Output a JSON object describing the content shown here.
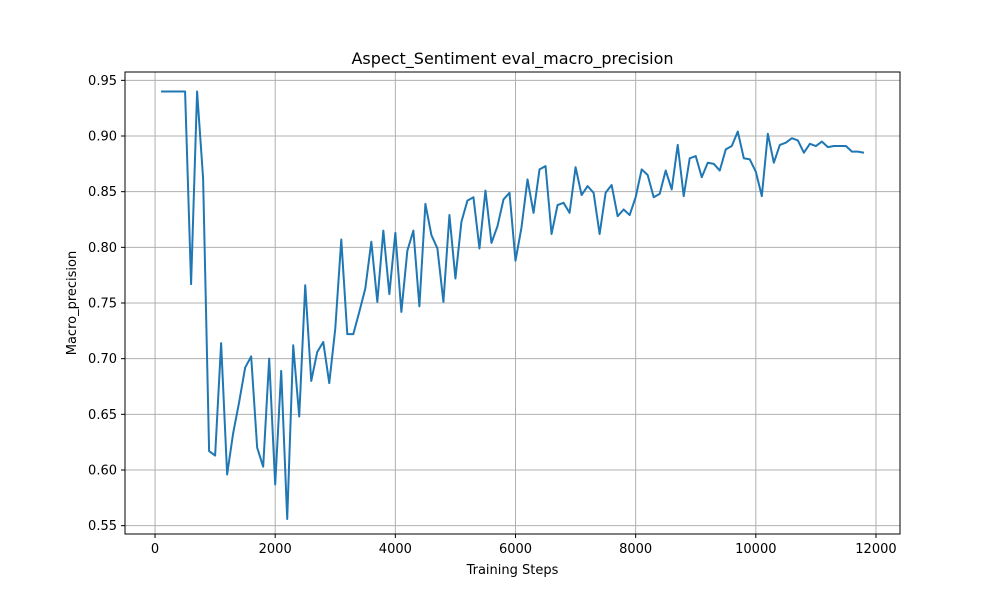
{
  "chart_data": {
    "type": "line",
    "title": "Aspect_Sentiment eval_macro_precision",
    "xlabel": "Training Steps",
    "ylabel": "Macro_precision",
    "xlim": [
      -500,
      12400
    ],
    "ylim": [
      0.5425,
      0.9575
    ],
    "xticks": [
      0,
      2000,
      4000,
      6000,
      8000,
      10000,
      12000
    ],
    "xtick_labels": [
      "0",
      "2000",
      "4000",
      "6000",
      "8000",
      "10000",
      "12000"
    ],
    "yticks": [
      0.55,
      0.6,
      0.65,
      0.7,
      0.75,
      0.8,
      0.85,
      0.9,
      0.95
    ],
    "ytick_labels": [
      "0.55",
      "0.60",
      "0.65",
      "0.70",
      "0.75",
      "0.80",
      "0.85",
      "0.90",
      "0.95"
    ],
    "grid": true,
    "color": "#1f77b4",
    "x": [
      100,
      500,
      600,
      700,
      800,
      900,
      1000,
      1100,
      1200,
      1300,
      1400,
      1500,
      1600,
      1700,
      1800,
      1900,
      2000,
      2100,
      2200,
      2300,
      2400,
      2500,
      2600,
      2700,
      2800,
      2900,
      3000,
      3100,
      3200,
      3300,
      3400,
      3500,
      3600,
      3700,
      3800,
      3900,
      4000,
      4100,
      4200,
      4300,
      4400,
      4500,
      4600,
      4700,
      4800,
      4900,
      5000,
      5100,
      5200,
      5300,
      5400,
      5500,
      5600,
      5700,
      5800,
      5900,
      6000,
      6100,
      6200,
      6300,
      6400,
      6500,
      6600,
      6700,
      6800,
      6900,
      7000,
      7100,
      7200,
      7300,
      7400,
      7500,
      7600,
      7700,
      7800,
      7900,
      8000,
      8100,
      8200,
      8300,
      8400,
      8500,
      8600,
      8700,
      8800,
      8900,
      9000,
      9100,
      9200,
      9300,
      9400,
      9500,
      9600,
      9700,
      9800,
      9900,
      10000,
      10100,
      10200,
      10300,
      10400,
      10500,
      10600,
      10700,
      10800,
      10900,
      11000,
      11100,
      11200,
      11300,
      11400,
      11500,
      11600,
      11700,
      11800
    ],
    "y": [
      0.94,
      0.94,
      0.767,
      0.94,
      0.862,
      0.617,
      0.613,
      0.714,
      0.596,
      0.633,
      0.661,
      0.692,
      0.702,
      0.62,
      0.603,
      0.7,
      0.587,
      0.689,
      0.556,
      0.712,
      0.648,
      0.766,
      0.68,
      0.706,
      0.715,
      0.678,
      0.727,
      0.807,
      0.722,
      0.722,
      0.742,
      0.763,
      0.805,
      0.751,
      0.815,
      0.758,
      0.813,
      0.742,
      0.797,
      0.815,
      0.747,
      0.839,
      0.811,
      0.799,
      0.751,
      0.829,
      0.772,
      0.823,
      0.842,
      0.845,
      0.799,
      0.851,
      0.804,
      0.819,
      0.843,
      0.849,
      0.788,
      0.818,
      0.861,
      0.831,
      0.87,
      0.873,
      0.812,
      0.838,
      0.84,
      0.831,
      0.872,
      0.847,
      0.855,
      0.849,
      0.812,
      0.849,
      0.856,
      0.828,
      0.834,
      0.829,
      0.845,
      0.87,
      0.865,
      0.845,
      0.848,
      0.869,
      0.852,
      0.892,
      0.846,
      0.88,
      0.882,
      0.863,
      0.876,
      0.875,
      0.869,
      0.888,
      0.891,
      0.904,
      0.88,
      0.879,
      0.868,
      0.846,
      0.902,
      0.876,
      0.892,
      0.894,
      0.898,
      0.896,
      0.885,
      0.893,
      0.891,
      0.895,
      0.89,
      0.891,
      0.891,
      0.891,
      0.886,
      0.886,
      0.885
    ]
  }
}
